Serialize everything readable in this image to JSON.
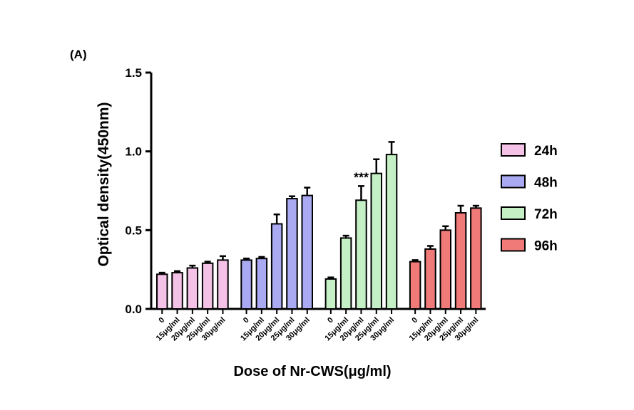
{
  "chart_data": {
    "type": "bar",
    "panel_label": "(A)",
    "title": "",
    "xlabel": "Dose of Nr-CWS(μg/ml)",
    "ylabel": "Optical density(450nm)",
    "ylim": [
      0,
      1.5
    ],
    "yticks": [
      "0.0",
      "0.5",
      "1.0",
      "1.5"
    ],
    "grid": false,
    "legend_position": "right",
    "categories": [
      "0",
      "15μg/ml",
      "20μg/ml",
      "25μg/ml",
      "30μg/ml"
    ],
    "series": [
      {
        "name": "24h",
        "color": "#f4c2e6",
        "values": [
          0.22,
          0.23,
          0.26,
          0.29,
          0.31
        ],
        "errors": [
          0.01,
          0.01,
          0.015,
          0.01,
          0.025
        ]
      },
      {
        "name": "48h",
        "color": "#aaaaf2",
        "values": [
          0.31,
          0.32,
          0.54,
          0.7,
          0.72
        ],
        "errors": [
          0.01,
          0.01,
          0.06,
          0.015,
          0.05
        ]
      },
      {
        "name": "72h",
        "color": "#c5f0c5",
        "values": [
          0.19,
          0.45,
          0.69,
          0.86,
          0.98
        ],
        "errors": [
          0.01,
          0.015,
          0.09,
          0.09,
          0.08
        ]
      },
      {
        "name": "96h",
        "color": "#ef7a78",
        "values": [
          0.3,
          0.38,
          0.5,
          0.61,
          0.64
        ],
        "errors": [
          0.01,
          0.02,
          0.025,
          0.045,
          0.015
        ]
      }
    ],
    "annotations": [
      {
        "text": "***",
        "series": "72h",
        "category": "20μg/ml"
      }
    ]
  }
}
